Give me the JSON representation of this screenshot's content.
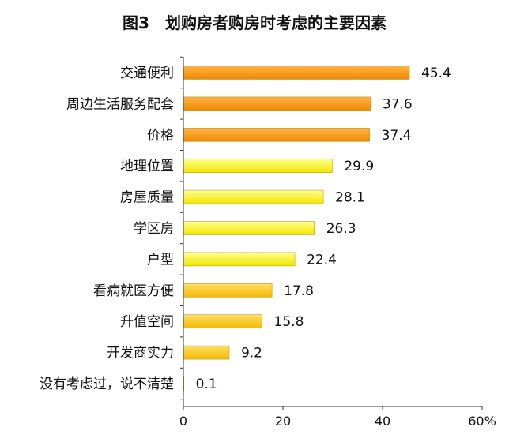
{
  "chart_data": {
    "type": "bar",
    "orientation": "horizontal",
    "title": "图3　划购房者购房时考虑的主要因素",
    "categories": [
      "交通便利",
      "周边生活服务配套",
      "价格",
      "地理位置",
      "房屋质量",
      "学区房",
      "户型",
      "看病就医方便",
      "升值空间",
      "开发商实力",
      "没有考虑过，说不清楚"
    ],
    "values": [
      45.4,
      37.6,
      37.4,
      29.9,
      28.1,
      26.3,
      22.4,
      17.8,
      15.8,
      9.2,
      0.1
    ],
    "value_labels": [
      "45.4",
      "37.6",
      "37.4",
      "29.9",
      "28.1",
      "26.3",
      "22.4",
      "17.8",
      "15.8",
      "9.2",
      "0.1"
    ],
    "xlim": [
      0,
      60
    ],
    "xticks": [
      {
        "value": 0,
        "label": "0"
      },
      {
        "value": 20,
        "label": "20"
      },
      {
        "value": 40,
        "label": "40"
      },
      {
        "value": 60,
        "label": "60%"
      }
    ],
    "grid": false,
    "colors": {
      "high": [
        "#FFB347",
        "#F08A00"
      ],
      "mid": [
        "#FFE066",
        "#F5B800"
      ],
      "low": [
        "#FFFF8C",
        "#F2E600"
      ]
    }
  }
}
